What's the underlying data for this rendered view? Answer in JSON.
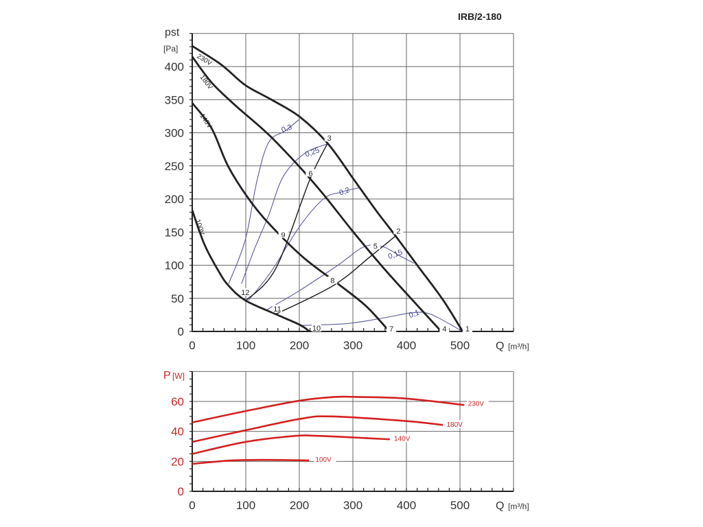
{
  "title": "IRB/2-180",
  "chart_data": [
    {
      "type": "line",
      "name": "pressure-curve",
      "ylabel_main": "pst",
      "ylabel_unit": "[Pa]",
      "xlabel_main": "Q",
      "xlabel_unit": "[m³/h]",
      "xlim": [
        0,
        600
      ],
      "ylim": [
        0,
        450
      ],
      "grid": true,
      "x_ticks": [
        0,
        100,
        200,
        300,
        400,
        500
      ],
      "y_ticks": [
        0,
        50,
        100,
        150,
        200,
        250,
        300,
        350,
        400
      ],
      "series": [
        {
          "name": "230V",
          "points": [
            [
              0,
              431
            ],
            [
              54,
              403
            ],
            [
              99,
              372
            ],
            [
              148,
              350
            ],
            [
              201,
              324
            ],
            [
              254,
              283
            ],
            [
              303,
              228
            ],
            [
              343,
              183
            ],
            [
              379,
              145
            ],
            [
              423,
              97
            ],
            [
              468,
              48
            ],
            [
              505,
              0
            ]
          ],
          "label_at": [
            8,
            414
          ],
          "label_angle": 32
        },
        {
          "name": "180V",
          "points": [
            [
              0,
              415
            ],
            [
              36,
              376
            ],
            [
              81,
              341
            ],
            [
              143,
              297
            ],
            [
              201,
              248
            ],
            [
              245,
              207
            ],
            [
              299,
              152
            ],
            [
              356,
              97
            ],
            [
              414,
              45
            ],
            [
              465,
              0
            ]
          ],
          "label_at": [
            14,
            384
          ],
          "label_angle": 52
        },
        {
          "name": "140V",
          "points": [
            [
              0,
              345
            ],
            [
              36,
              307
            ],
            [
              68,
              248
            ],
            [
              112,
              193
            ],
            [
              156,
              152
            ],
            [
              210,
              110
            ],
            [
              272,
              72
            ],
            [
              325,
              38
            ],
            [
              368,
              0
            ]
          ],
          "label_at": [
            14,
            326
          ],
          "label_angle": 56
        },
        {
          "name": "100V",
          "points": [
            [
              0,
              183
            ],
            [
              23,
              131
            ],
            [
              50,
              90
            ],
            [
              68,
              69
            ],
            [
              99,
              47
            ],
            [
              156,
              26
            ],
            [
              201,
              10
            ],
            [
              219,
              0
            ]
          ],
          "label_at": [
            6,
            168
          ],
          "label_angle": 72
        }
      ],
      "system_lines": [
        {
          "from": "12",
          "to": "3",
          "points": [
            [
              101,
              47
            ],
            [
              156,
              95
            ],
            [
              219,
              228
            ],
            [
              252,
              283
            ]
          ]
        },
        {
          "from": "11",
          "to": "2",
          "points": [
            [
              156,
              26
            ],
            [
              263,
              69
            ],
            [
              334,
              114
            ],
            [
              381,
              145
            ]
          ]
        }
      ],
      "efficiency_curves": [
        {
          "name": "0,3",
          "points": [
            [
              68,
              72
            ],
            [
              99,
              138
            ],
            [
              121,
              228
            ],
            [
              143,
              286
            ],
            [
              174,
              303
            ],
            [
              201,
              321
            ]
          ],
          "label_at": [
            176,
            307
          ]
        },
        {
          "name": "0,25",
          "points": [
            [
              92,
              72
            ],
            [
              116,
              124
            ],
            [
              143,
              176
            ],
            [
              170,
              234
            ],
            [
              210,
              269
            ],
            [
              252,
              283
            ]
          ],
          "label_at": [
            224,
            271
          ]
        },
        {
          "name": "0,2",
          "points": [
            [
              105,
              47
            ],
            [
              147,
              90
            ],
            [
              201,
              159
            ],
            [
              245,
              200
            ],
            [
              276,
              210
            ],
            [
              312,
              217
            ]
          ],
          "label_at": [
            284,
            212
          ]
        },
        {
          "name": "0,15",
          "points": [
            [
              140,
              33
            ],
            [
              201,
              62
            ],
            [
              272,
              100
            ],
            [
              321,
              128
            ],
            [
              356,
              128
            ],
            [
              388,
              114
            ],
            [
              414,
              103
            ]
          ],
          "label_at": [
            379,
            117
          ]
        },
        {
          "name": "0,1",
          "points": [
            [
              201,
              9
            ],
            [
              290,
              12
            ],
            [
              361,
              21
            ],
            [
              410,
              28
            ],
            [
              445,
              26
            ],
            [
              505,
              0
            ]
          ],
          "label_at": [
            414,
            27
          ]
        }
      ],
      "point_labels": [
        {
          "name": "1",
          "at": [
            514,
            2
          ]
        },
        {
          "name": "2",
          "at": [
            385,
            150
          ]
        },
        {
          "name": "3",
          "at": [
            256,
            290
          ]
        },
        {
          "name": "4",
          "at": [
            471,
            2
          ]
        },
        {
          "name": "5",
          "at": [
            342,
            127
          ]
        },
        {
          "name": "6",
          "at": [
            221,
            237
          ]
        },
        {
          "name": "7",
          "at": [
            372,
            2
          ]
        },
        {
          "name": "8",
          "at": [
            262,
            75
          ]
        },
        {
          "name": "9",
          "at": [
            170,
            144
          ]
        },
        {
          "name": "10",
          "at": [
            232,
            3
          ]
        },
        {
          "name": "11",
          "at": [
            159,
            32
          ]
        },
        {
          "name": "12",
          "at": [
            99,
            57
          ]
        }
      ]
    },
    {
      "type": "line",
      "name": "power-curve",
      "ylabel_main": "P",
      "ylabel_unit": "[W]",
      "xlabel_main": "Q",
      "xlabel_unit": "[m³/h]",
      "xlim": [
        0,
        600
      ],
      "ylim": [
        0,
        80
      ],
      "grid": true,
      "x_ticks": [
        0,
        100,
        200,
        300,
        400,
        500
      ],
      "y_ticks": [
        0,
        20,
        40,
        60
      ],
      "color": "#d42020",
      "series": [
        {
          "name": "230V",
          "points": [
            [
              0,
              46
            ],
            [
              100,
              53.6
            ],
            [
              202,
              60.6
            ],
            [
              267,
              63
            ],
            [
              304,
              63
            ],
            [
              397,
              62
            ],
            [
              508,
              57.6
            ]
          ],
          "label_at": [
            515,
            58
          ]
        },
        {
          "name": "180V",
          "points": [
            [
              0,
              33
            ],
            [
              100,
              40.8
            ],
            [
              202,
              48.4
            ],
            [
              258,
              50
            ],
            [
              397,
              47
            ],
            [
              468,
              44.3
            ]
          ],
          "label_at": [
            475,
            44
          ]
        },
        {
          "name": "140V",
          "points": [
            [
              0,
              25
            ],
            [
              100,
              33
            ],
            [
              193,
              37
            ],
            [
              235,
              37
            ],
            [
              304,
              35.9
            ],
            [
              369,
              34.7
            ]
          ],
          "label_at": [
            377,
            34.5
          ]
        },
        {
          "name": "100V",
          "points": [
            [
              0,
              18.3
            ],
            [
              73,
              20.6
            ],
            [
              142,
              21
            ],
            [
              218,
              20.6
            ]
          ],
          "label_at": [
            230,
            20.5
          ]
        }
      ]
    }
  ]
}
